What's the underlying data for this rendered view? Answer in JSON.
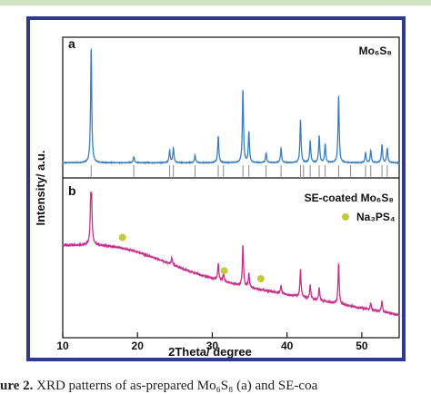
{
  "caption": {
    "prefix": "ure 2.",
    "text": " XRD patterns of as-prepared Mo₆S₈ (a) and SE-coa"
  },
  "chart_data": {
    "type": "line",
    "xlabel": "2Theta/ degree",
    "ylabel": "Intensity/ a.u.",
    "xlim": [
      10,
      55
    ],
    "x_ticks": [
      10,
      20,
      30,
      40,
      50
    ],
    "panels": [
      {
        "label": "a",
        "series_name": "Mo₆S₈",
        "color": "#3a7fc0",
        "baseline": 0.05,
        "peaks": [
          {
            "x": 13.8,
            "h": 0.95
          },
          {
            "x": 19.5,
            "h": 0.05
          },
          {
            "x": 24.3,
            "h": 0.1
          },
          {
            "x": 24.8,
            "h": 0.12
          },
          {
            "x": 27.7,
            "h": 0.06
          },
          {
            "x": 30.8,
            "h": 0.22
          },
          {
            "x": 34.1,
            "h": 0.6
          },
          {
            "x": 34.9,
            "h": 0.25
          },
          {
            "x": 37.2,
            "h": 0.08
          },
          {
            "x": 39.2,
            "h": 0.12
          },
          {
            "x": 41.8,
            "h": 0.35
          },
          {
            "x": 43.1,
            "h": 0.18
          },
          {
            "x": 44.3,
            "h": 0.22
          },
          {
            "x": 45.1,
            "h": 0.15
          },
          {
            "x": 46.9,
            "h": 0.55
          },
          {
            "x": 50.5,
            "h": 0.08
          },
          {
            "x": 51.2,
            "h": 0.1
          },
          {
            "x": 52.7,
            "h": 0.15
          },
          {
            "x": 53.4,
            "h": 0.12
          }
        ],
        "reference_ticks": [
          13.8,
          19.5,
          24.3,
          24.8,
          27.7,
          30.8,
          31.5,
          34.1,
          34.9,
          37.2,
          39.2,
          41.8,
          42.2,
          43.1,
          44.3,
          45.1,
          46.9,
          48.5,
          50.5,
          51.2,
          52.7,
          53.4
        ]
      },
      {
        "label": "b",
        "series_name": "SE-coated Mo₆S₈",
        "color": "#c8308c",
        "hump": {
          "start": 0.55,
          "end": 0.1,
          "center": 17.5,
          "amp": 0.12,
          "width": 6.5
        },
        "peaks": [
          {
            "x": 13.8,
            "h": 0.65
          },
          {
            "x": 24.6,
            "h": 0.05
          },
          {
            "x": 30.8,
            "h": 0.12
          },
          {
            "x": 31.5,
            "h": 0.06
          },
          {
            "x": 34.1,
            "h": 0.3
          },
          {
            "x": 34.9,
            "h": 0.1
          },
          {
            "x": 39.2,
            "h": 0.06
          },
          {
            "x": 41.8,
            "h": 0.2
          },
          {
            "x": 43.1,
            "h": 0.1
          },
          {
            "x": 44.3,
            "h": 0.09
          },
          {
            "x": 46.9,
            "h": 0.3
          },
          {
            "x": 51.2,
            "h": 0.05
          },
          {
            "x": 52.7,
            "h": 0.08
          }
        ],
        "markers": [
          18.0,
          31.6,
          36.5
        ],
        "marker_color": "#c2cc3a",
        "legend": "Na₃PS₄"
      }
    ]
  }
}
